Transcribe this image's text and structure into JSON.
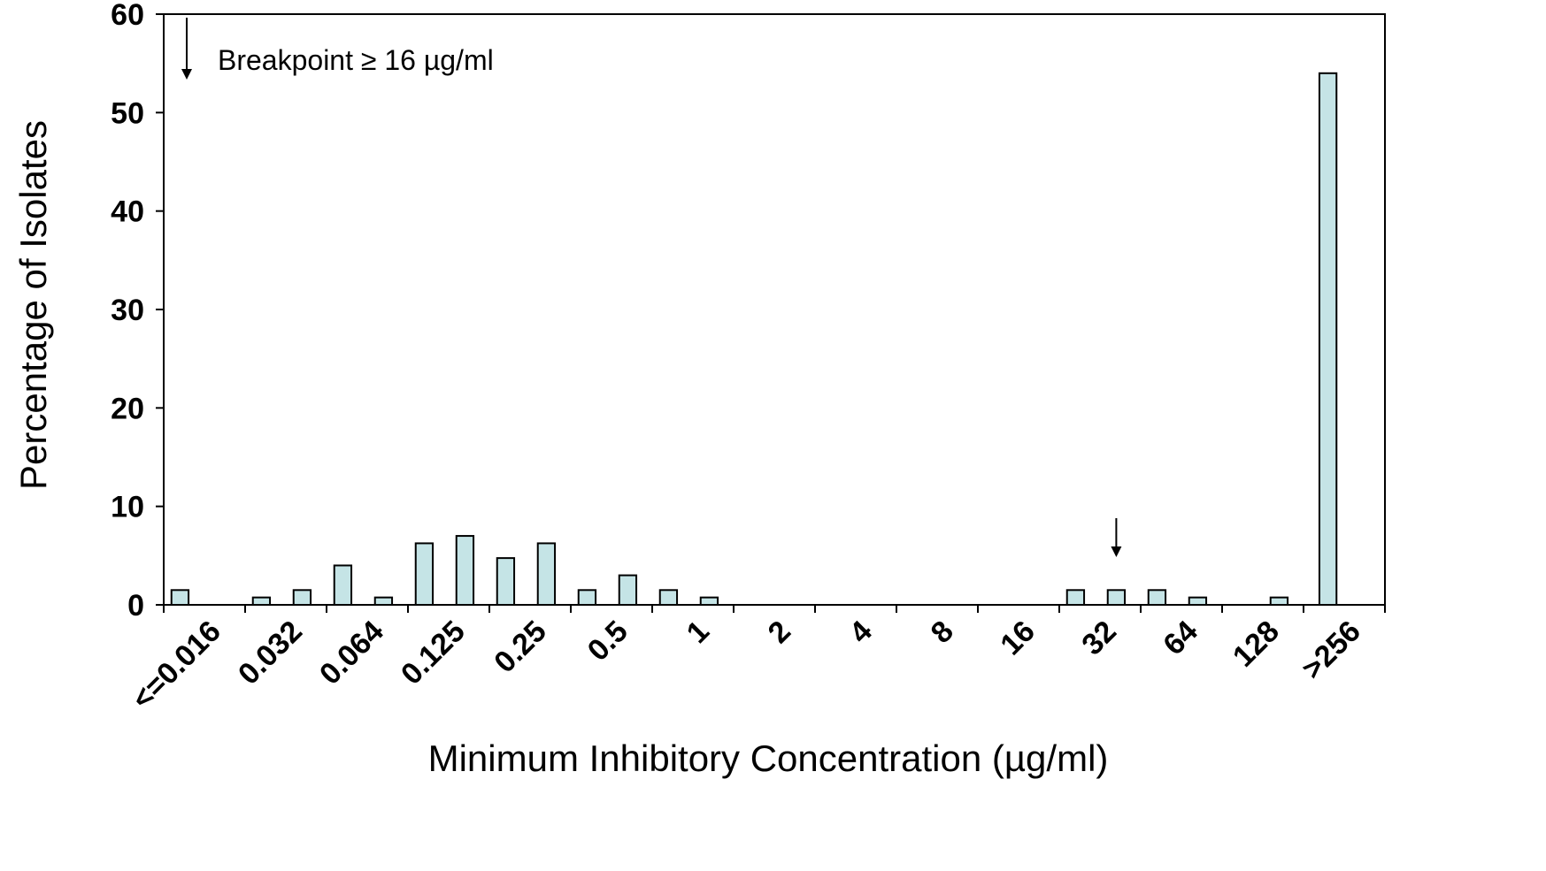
{
  "chart_data": {
    "type": "bar",
    "title": "",
    "xlabel": "Minimum Inhibitory Concentration (µg/ml)",
    "ylabel": "Percentage of Isolates",
    "ylim": [
      0,
      60
    ],
    "yticks": [
      "0",
      "10",
      "20",
      "30",
      "40",
      "50",
      "60"
    ],
    "x_tick_labels": [
      "<=0.016",
      "0.032",
      "0.064",
      "0.125",
      "0.25",
      "0.5",
      "1",
      "2",
      "4",
      "8",
      "16",
      "32",
      "64",
      "128",
      ">256"
    ],
    "bar_color": "#c5e4e6",
    "bar_positions": [
      0.2,
      1.2,
      1.7,
      2.2,
      2.7,
      3.2,
      3.7,
      4.2,
      4.7,
      5.2,
      5.7,
      6.2,
      6.7,
      11.2,
      11.7,
      12.2,
      12.7,
      13.7,
      14.3
    ],
    "values": [
      1.5,
      0.75,
      1.5,
      4.0,
      0.75,
      6.25,
      7.0,
      4.75,
      6.25,
      1.5,
      3.0,
      1.5,
      0.75,
      1.5,
      1.5,
      1.5,
      0.75,
      0.75,
      54.0
    ],
    "annotations": [
      {
        "text": "Breakpoint  ≥ 16 µg/ml",
        "type": "legend-arrow"
      },
      {
        "type": "arrow",
        "x": 11.7,
        "points_to": "16"
      }
    ],
    "grid": false,
    "legend": "none"
  }
}
